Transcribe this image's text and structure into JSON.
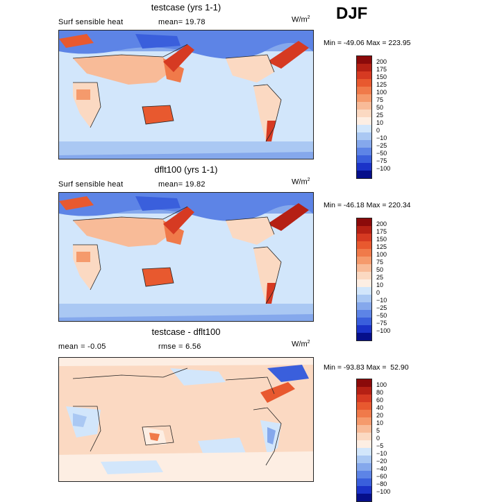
{
  "season": "DJF",
  "panels": [
    {
      "title": "testcase (yrs 1-1)",
      "left_text": "Surf sensible heat",
      "right_text": "mean=  19.78",
      "units": "W/m",
      "units_sup": "2",
      "minmax": "Min = -49.06 Max = 223.95",
      "colorbar_labels": [
        "200",
        "175",
        "150",
        "125",
        "100",
        "75",
        "50",
        "25",
        "10",
        "0",
        "−10",
        "−25",
        "−50",
        "−75",
        "−100"
      ],
      "colorbar_colors": [
        "#8b0a0a",
        "#b52014",
        "#d63a22",
        "#e8592f",
        "#f07a4a",
        "#f59a6c",
        "#f8bb98",
        "#fbd9c2",
        "#fdeee3",
        "#d2e6fb",
        "#aac8f3",
        "#85a8ec",
        "#5d84e6",
        "#3a5fdc",
        "#1b33c8",
        "#060f8a"
      ]
    },
    {
      "title": "dflt100 (yrs 1-1)",
      "left_text": "Surf sensible heat",
      "right_text": "mean=  19.82",
      "units": "W/m",
      "units_sup": "2",
      "minmax": "Min = -46.18 Max = 220.34",
      "colorbar_labels": [
        "200",
        "175",
        "150",
        "125",
        "100",
        "75",
        "50",
        "25",
        "10",
        "0",
        "−10",
        "−25",
        "−50",
        "−75",
        "−100"
      ],
      "colorbar_colors": [
        "#8b0a0a",
        "#b52014",
        "#d63a22",
        "#e8592f",
        "#f07a4a",
        "#f59a6c",
        "#f8bb98",
        "#fbd9c2",
        "#fdeee3",
        "#d2e6fb",
        "#aac8f3",
        "#85a8ec",
        "#5d84e6",
        "#3a5fdc",
        "#1b33c8",
        "#060f8a"
      ]
    },
    {
      "title": "testcase - dflt100",
      "left_text": "mean =  -0.05",
      "right_text": "rmse =   6.56",
      "units": "W/m",
      "units_sup": "2",
      "minmax": "Min = -93.83 Max =  52.90",
      "colorbar_labels": [
        "100",
        "80",
        "60",
        "40",
        "20",
        "10",
        "5",
        "0",
        "−5",
        "−10",
        "−20",
        "−40",
        "−60",
        "−80",
        "−100"
      ],
      "colorbar_colors": [
        "#8b0a0a",
        "#b52014",
        "#d63a22",
        "#e8592f",
        "#f07a4a",
        "#f59a6c",
        "#f8bb98",
        "#fbd9c2",
        "#fdeee3",
        "#d2e6fb",
        "#aac8f3",
        "#85a8ec",
        "#5d84e6",
        "#3a5fdc",
        "#1b33c8",
        "#060f8a"
      ]
    }
  ]
}
